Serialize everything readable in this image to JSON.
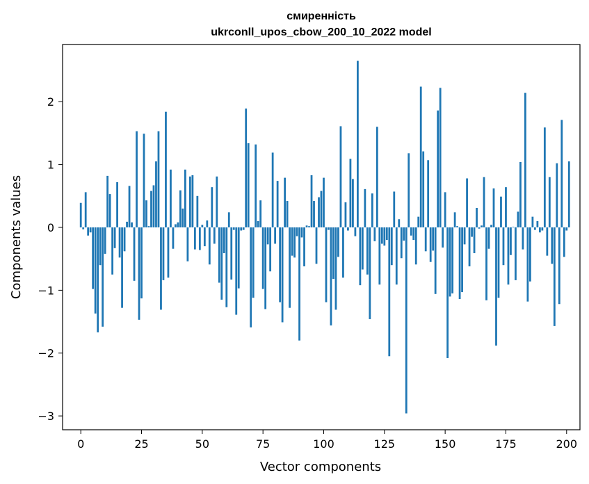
{
  "chart_data": {
    "type": "bar",
    "title": "смиренність",
    "subtitle": "ukrconll_upos_cbow_200_10_2022 model",
    "xlabel": "Vector components",
    "ylabel": "Components values",
    "xlim": [
      -7.5,
      205.5
    ],
    "ylim": [
      -3.22,
      2.91
    ],
    "x_ticks": [
      0,
      25,
      50,
      75,
      100,
      125,
      150,
      175,
      200
    ],
    "y_ticks": [
      -3,
      -2,
      -1,
      0,
      1,
      2
    ],
    "y_tick_labels": [
      "−3",
      "−2",
      "−1",
      "0",
      "1",
      "2"
    ],
    "bar_color": "#1f77b4",
    "values": [
      0.39,
      -0.03,
      0.56,
      -0.13,
      -0.08,
      -0.98,
      -1.37,
      -1.67,
      -0.6,
      -1.58,
      -0.42,
      0.82,
      0.53,
      -0.75,
      -0.33,
      0.72,
      -0.48,
      -1.28,
      -0.38,
      0.09,
      0.66,
      0.08,
      -0.85,
      1.53,
      -1.47,
      -1.13,
      1.49,
      0.43,
      0.02,
      0.58,
      0.67,
      1.05,
      1.53,
      -1.31,
      -0.84,
      1.84,
      -0.8,
      0.92,
      -0.34,
      0.05,
      0.08,
      0.59,
      0.3,
      0.92,
      -0.54,
      0.81,
      0.83,
      -0.35,
      0.5,
      -0.36,
      0.04,
      -0.3,
      0.11,
      -0.59,
      0.64,
      -0.26,
      0.81,
      -0.88,
      -1.15,
      -0.41,
      -1.27,
      0.24,
      -0.83,
      -0.04,
      -1.39,
      -0.97,
      -0.05,
      -0.04,
      1.89,
      1.34,
      -1.59,
      -1.12,
      1.32,
      0.1,
      0.43,
      -0.98,
      -1.3,
      -0.27,
      -0.7,
      1.19,
      -0.26,
      0.74,
      -1.19,
      -1.51,
      0.79,
      0.42,
      -1.28,
      -0.45,
      -0.48,
      -0.14,
      -1.8,
      -0.16,
      -0.62,
      0.03,
      0.02,
      0.83,
      0.42,
      -0.58,
      0.48,
      0.58,
      0.79,
      -1.19,
      -0.04,
      -1.56,
      -0.82,
      -1.31,
      -0.47,
      1.61,
      -0.8,
      0.4,
      -0.05,
      1.09,
      0.77,
      -0.14,
      2.65,
      -0.92,
      -0.67,
      0.61,
      -0.75,
      -1.46,
      0.54,
      -0.22,
      1.6,
      -0.91,
      -0.26,
      -0.29,
      -0.2,
      -2.05,
      -0.6,
      0.57,
      -0.91,
      0.13,
      -0.49,
      -0.21,
      -2.96,
      1.18,
      -0.13,
      -0.2,
      -0.59,
      0.17,
      2.24,
      1.21,
      -0.38,
      1.07,
      -0.55,
      -0.37,
      -1.06,
      1.86,
      2.22,
      -0.32,
      0.56,
      -2.08,
      -1.1,
      -1.05,
      0.24,
      0.02,
      -1.14,
      -1.03,
      -0.27,
      0.78,
      -0.62,
      -0.15,
      -0.41,
      0.31,
      -0.02,
      0.03,
      0.8,
      -1.16,
      -0.34,
      0.04,
      0.62,
      -1.88,
      -1.12,
      0.49,
      -0.6,
      0.64,
      -0.91,
      -0.44,
      0.01,
      -0.84,
      0.25,
      1.04,
      -0.35,
      2.14,
      -1.18,
      -0.86,
      0.17,
      -0.04,
      0.1,
      -0.08,
      -0.05,
      1.59,
      -0.45,
      0.8,
      -0.58,
      -1.57,
      1.02,
      -1.22,
      1.71,
      -0.47,
      -0.05,
      1.05
    ]
  }
}
